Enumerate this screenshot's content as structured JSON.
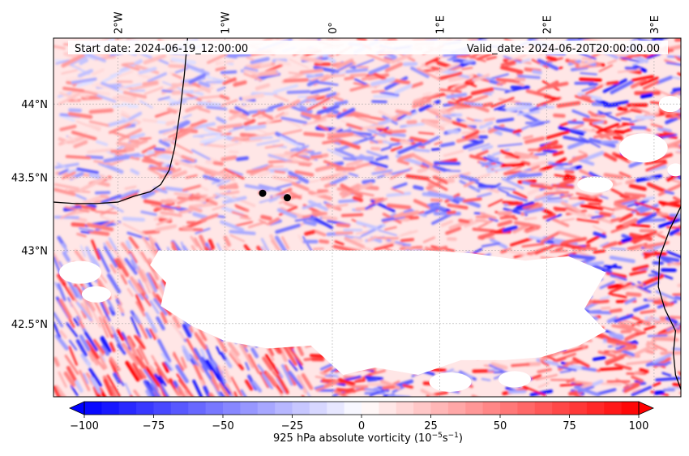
{
  "map": {
    "start_date_text": "Start date: 2024-06-19_12:00:00",
    "valid_date_text": "Valid_date: 2024-06-20T20:00:00.00",
    "field": "925 hPa absolute vorticity",
    "lon_labels": [
      {
        "text": "2°W",
        "lon": -2
      },
      {
        "text": "1°W",
        "lon": -1
      },
      {
        "text": "0°",
        "lon": 0
      },
      {
        "text": "1°E",
        "lon": 1
      },
      {
        "text": "2°E",
        "lon": 2
      },
      {
        "text": "3°E",
        "lon": 3
      }
    ],
    "lat_labels": [
      {
        "text": "44°N",
        "lat": 44.0
      },
      {
        "text": "43.5°N",
        "lat": 43.5
      },
      {
        "text": "43°N",
        "lat": 43.0
      },
      {
        "text": "42.5°N",
        "lat": 42.5
      }
    ],
    "extent": {
      "lon_min": -2.6,
      "lon_max": 3.25,
      "lat_min": 42.0,
      "lat_max": 44.45
    },
    "markers": [
      {
        "lon": -0.65,
        "lat": 43.39
      },
      {
        "lon": -0.42,
        "lat": 43.36
      }
    ],
    "gridlines": true,
    "colormap": {
      "low": "#0000ff",
      "mid": "#ffffff",
      "high": "#ff0000"
    },
    "mask_color": "#ffffff"
  },
  "colorbar": {
    "tick_values": [
      -100,
      -75,
      -50,
      -25,
      0,
      25,
      50,
      75,
      100
    ],
    "vmin": -100,
    "vmax": 100,
    "label_main": "925 hPa absolute vorticity (10",
    "label_exp1": "−5",
    "label_mid": "s",
    "label_exp2": "−1",
    "label_end": ")",
    "extend": "both"
  }
}
